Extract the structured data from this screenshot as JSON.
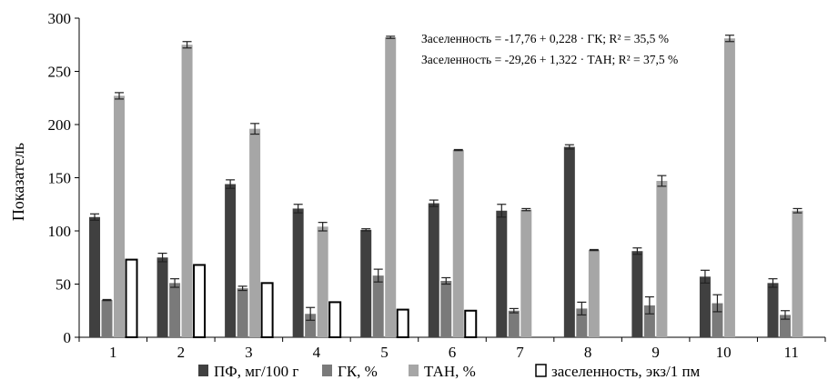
{
  "chart_data": {
    "type": "bar",
    "ylabel": "Показатель",
    "xlabel": "",
    "ylim": [
      0,
      300
    ],
    "yticks": [
      0,
      50,
      100,
      150,
      200,
      250,
      300
    ],
    "categories": [
      "1",
      "2",
      "3",
      "4",
      "5",
      "6",
      "7",
      "8",
      "9",
      "10",
      "11"
    ],
    "series": [
      {
        "name": "ПФ, мг/100 г",
        "color": "#404040",
        "values": [
          113,
          75,
          144,
          121,
          101,
          126,
          119,
          179,
          81,
          57,
          51
        ],
        "errors": [
          3,
          4,
          4,
          4,
          1,
          3,
          6,
          2,
          3,
          6,
          4
        ]
      },
      {
        "name": "ГК, %",
        "color": "#7a7a7a",
        "values": [
          35,
          51,
          46,
          22,
          58,
          53,
          25,
          27,
          30,
          32,
          21
        ],
        "errors": [
          0.5,
          4,
          2,
          6,
          6,
          3,
          2,
          6,
          8,
          8,
          4
        ]
      },
      {
        "name": "ТАН, %",
        "color": "#a6a6a6",
        "values": [
          227,
          275,
          196,
          104,
          282,
          176,
          120,
          82,
          147,
          281,
          119
        ],
        "errors": [
          3,
          3,
          5,
          4,
          1,
          0.5,
          1,
          0.5,
          5,
          3,
          2
        ]
      },
      {
        "name": "заселенность, экз/1 пм",
        "color": "#ffffff",
        "values": [
          73,
          68,
          51,
          33,
          26,
          25,
          0,
          0,
          0,
          0,
          0
        ],
        "errors": [
          0,
          0,
          0,
          0,
          0,
          0,
          0,
          0,
          0,
          0,
          0
        ]
      }
    ],
    "annotations": [
      "Заселенность = -17,76 + 0,228 · ГК; R² = 35,5 %",
      "Заселенность = -29,26 + 1,322 · ТАН; R² = 37,5 %"
    ],
    "legend_position": "bottom",
    "grid": false
  }
}
